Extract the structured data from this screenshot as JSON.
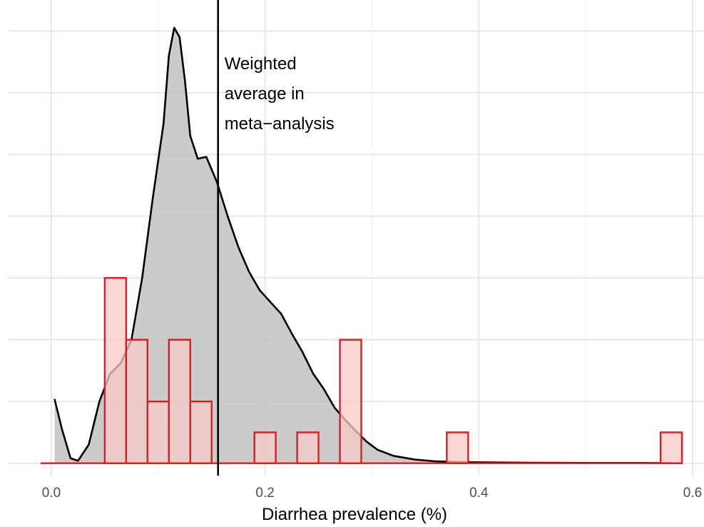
{
  "chart_data": {
    "type": "histogram+density",
    "title": "",
    "xlabel": "Diarrhea prevalence (%)",
    "ylabel": "",
    "xlim": [
      -0.04,
      0.61
    ],
    "x_ticks": [
      {
        "value": 0.0,
        "label": "0.0"
      },
      {
        "value": 0.2,
        "label": "0.2"
      },
      {
        "value": 0.4,
        "label": "0.4"
      },
      {
        "value": 0.6,
        "label": "0.6"
      }
    ],
    "x_minor_gridlines": [
      0.1,
      0.3,
      0.5
    ],
    "y_gridlines": [
      0,
      1,
      2,
      3,
      4,
      5,
      6,
      7
    ],
    "ylim": [
      -0.2,
      7.5
    ],
    "y_ticks_shown": false,
    "grid": true,
    "histogram": {
      "bin_width": 0.02,
      "fill_color": "#f8c9c9",
      "stroke_color": "#e41a1c",
      "bins": [
        {
          "x0": 0.05,
          "x1": 0.07,
          "count": 3
        },
        {
          "x0": 0.07,
          "x1": 0.09,
          "count": 2
        },
        {
          "x0": 0.09,
          "x1": 0.11,
          "count": 1
        },
        {
          "x0": 0.11,
          "x1": 0.13,
          "count": 2
        },
        {
          "x0": 0.13,
          "x1": 0.15,
          "count": 1
        },
        {
          "x0": 0.19,
          "x1": 0.21,
          "count": 0.5
        },
        {
          "x0": 0.23,
          "x1": 0.25,
          "count": 0.5
        },
        {
          "x0": 0.27,
          "x1": 0.29,
          "count": 2
        },
        {
          "x0": 0.37,
          "x1": 0.39,
          "count": 0.5
        },
        {
          "x0": 0.57,
          "x1": 0.59,
          "count": 0.5
        }
      ],
      "baseline": {
        "x0": -0.01,
        "x1": 0.59
      }
    },
    "density": {
      "fill_color": "#bebebe",
      "stroke_color": "#000000",
      "points": [
        [
          0.003,
          1.04
        ],
        [
          0.01,
          0.55
        ],
        [
          0.018,
          0.08
        ],
        [
          0.025,
          0.04
        ],
        [
          0.035,
          0.3
        ],
        [
          0.045,
          1.0
        ],
        [
          0.055,
          1.45
        ],
        [
          0.065,
          1.62
        ],
        [
          0.075,
          2.0
        ],
        [
          0.085,
          3.0
        ],
        [
          0.095,
          4.3
        ],
        [
          0.105,
          5.5
        ],
        [
          0.11,
          6.6
        ],
        [
          0.115,
          7.05
        ],
        [
          0.12,
          6.9
        ],
        [
          0.125,
          6.2
        ],
        [
          0.13,
          5.3
        ],
        [
          0.137,
          4.93
        ],
        [
          0.145,
          4.96
        ],
        [
          0.155,
          4.55
        ],
        [
          0.165,
          4.0
        ],
        [
          0.175,
          3.5
        ],
        [
          0.185,
          3.1
        ],
        [
          0.195,
          2.8
        ],
        [
          0.205,
          2.61
        ],
        [
          0.215,
          2.42
        ],
        [
          0.225,
          2.1
        ],
        [
          0.235,
          1.8
        ],
        [
          0.245,
          1.45
        ],
        [
          0.255,
          1.2
        ],
        [
          0.265,
          0.9
        ],
        [
          0.275,
          0.7
        ],
        [
          0.285,
          0.52
        ],
        [
          0.295,
          0.35
        ],
        [
          0.305,
          0.22
        ],
        [
          0.32,
          0.12
        ],
        [
          0.34,
          0.06
        ],
        [
          0.36,
          0.03
        ],
        [
          0.4,
          0.015
        ],
        [
          0.45,
          0.008
        ],
        [
          0.5,
          0.005
        ],
        [
          0.55,
          0.004
        ],
        [
          0.58,
          0.002
        ]
      ]
    },
    "reference_line": {
      "x": 0.156,
      "color": "#000000",
      "label_lines": [
        "Weighted",
        "average in",
        "meta−analysis"
      ]
    }
  }
}
